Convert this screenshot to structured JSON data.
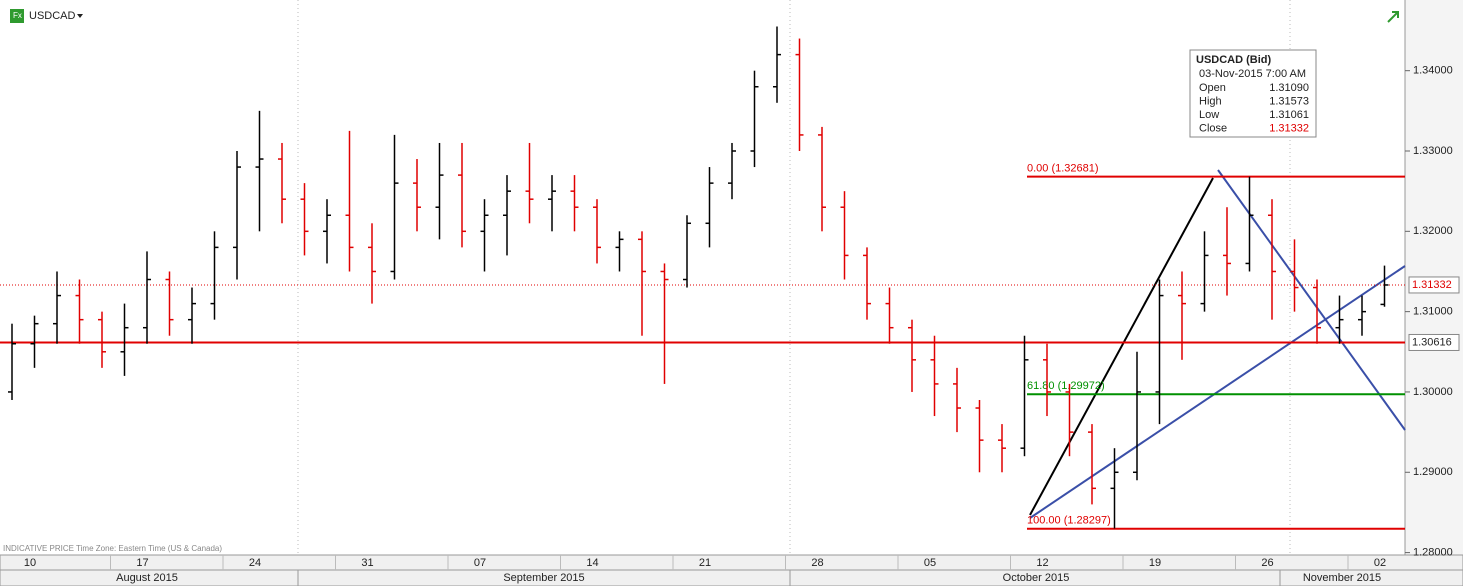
{
  "header": {
    "symbol": "USDCAD",
    "footnote": "INDICATIVE PRICE   Time Zone: Eastern Time (US & Canada)"
  },
  "info_box": {
    "title": "USDCAD (Bid)",
    "date": "03-Nov-2015 7:00 AM",
    "rows": [
      [
        "Open",
        "1.31090"
      ],
      [
        "High",
        "1.31573"
      ],
      [
        "Low",
        "1.31061"
      ],
      [
        "Close",
        "1.31332"
      ]
    ]
  },
  "chart_data": {
    "type": "ohlc",
    "up_color": "#000000",
    "down_color": "#e00000",
    "categories": [
      "10",
      null,
      null,
      null,
      null,
      "17",
      null,
      null,
      null,
      null,
      "24",
      null,
      null,
      null,
      null,
      "31",
      null,
      null,
      null,
      null,
      "07",
      null,
      null,
      null,
      null,
      "14",
      null,
      null,
      null,
      null,
      "21",
      null,
      null,
      null,
      null,
      "28",
      null,
      null,
      null,
      null,
      "05",
      null,
      null,
      null,
      null,
      "12",
      null,
      null,
      null,
      null,
      "19",
      null,
      null,
      null,
      null,
      "26",
      null,
      null,
      null,
      null,
      "02",
      null
    ],
    "month_labels": [
      "August 2015",
      "September 2015",
      "October 2015",
      "November 2015"
    ],
    "open": [
      1.3,
      1.306,
      1.3085,
      1.312,
      1.309,
      1.305,
      1.308,
      1.314,
      1.309,
      1.311,
      1.318,
      1.328,
      1.329,
      1.324,
      1.32,
      1.322,
      1.318,
      1.315,
      1.326,
      1.323,
      1.327,
      1.32,
      1.322,
      1.325,
      1.324,
      1.325,
      1.323,
      1.318,
      1.319,
      1.315,
      1.314,
      1.321,
      1.326,
      1.33,
      1.338,
      1.342,
      1.332,
      1.323,
      1.317,
      1.311,
      1.308,
      1.304,
      1.301,
      1.298,
      1.294,
      1.293,
      1.304,
      1.3,
      1.295,
      1.288,
      1.29,
      1.3,
      1.312,
      1.311,
      1.317,
      1.316,
      1.322,
      1.315,
      1.313,
      1.308,
      1.309,
      1.3109
    ],
    "high": [
      1.3085,
      1.3095,
      1.315,
      1.314,
      1.31,
      1.311,
      1.3175,
      1.315,
      1.313,
      1.32,
      1.33,
      1.335,
      1.331,
      1.326,
      1.324,
      1.3325,
      1.321,
      1.332,
      1.329,
      1.331,
      1.331,
      1.324,
      1.327,
      1.331,
      1.327,
      1.327,
      1.324,
      1.32,
      1.32,
      1.316,
      1.322,
      1.328,
      1.331,
      1.34,
      1.3455,
      1.344,
      1.333,
      1.325,
      1.318,
      1.313,
      1.309,
      1.307,
      1.303,
      1.299,
      1.296,
      1.307,
      1.306,
      1.301,
      1.296,
      1.293,
      1.305,
      1.314,
      1.315,
      1.32,
      1.323,
      1.3268,
      1.324,
      1.319,
      1.314,
      1.312,
      1.312,
      1.31573
    ],
    "low": [
      1.299,
      1.303,
      1.306,
      1.306,
      1.303,
      1.302,
      1.306,
      1.307,
      1.306,
      1.309,
      1.314,
      1.32,
      1.321,
      1.317,
      1.316,
      1.315,
      1.311,
      1.314,
      1.32,
      1.319,
      1.318,
      1.315,
      1.317,
      1.321,
      1.32,
      1.32,
      1.316,
      1.315,
      1.307,
      1.301,
      1.313,
      1.318,
      1.324,
      1.328,
      1.336,
      1.33,
      1.32,
      1.314,
      1.309,
      1.306,
      1.3,
      1.297,
      1.295,
      1.29,
      1.29,
      1.292,
      1.297,
      1.292,
      1.286,
      1.283,
      1.289,
      1.296,
      1.304,
      1.31,
      1.312,
      1.315,
      1.309,
      1.31,
      1.306,
      1.306,
      1.307,
      1.31061
    ],
    "close": [
      1.306,
      1.3085,
      1.312,
      1.309,
      1.305,
      1.308,
      1.314,
      1.309,
      1.311,
      1.318,
      1.328,
      1.329,
      1.324,
      1.32,
      1.322,
      1.318,
      1.315,
      1.326,
      1.323,
      1.327,
      1.32,
      1.322,
      1.325,
      1.324,
      1.325,
      1.323,
      1.318,
      1.319,
      1.315,
      1.314,
      1.321,
      1.326,
      1.33,
      1.338,
      1.342,
      1.332,
      1.323,
      1.317,
      1.311,
      1.308,
      1.304,
      1.301,
      1.298,
      1.294,
      1.293,
      1.304,
      1.3,
      1.295,
      1.288,
      1.29,
      1.3,
      1.312,
      1.311,
      1.317,
      1.316,
      1.322,
      1.315,
      1.313,
      1.308,
      1.309,
      1.31,
      1.31332
    ],
    "ylim": [
      1.2797,
      1.3488
    ],
    "yticks": [
      {
        "value": 1.28,
        "label": "1.28000"
      },
      {
        "value": 1.29,
        "label": "1.29000"
      },
      {
        "value": 1.3,
        "label": "1.30000"
      },
      {
        "value": 1.31,
        "label": "1.31000"
      },
      {
        "value": 1.32,
        "label": "1.32000"
      },
      {
        "value": 1.33,
        "label": "1.33000"
      },
      {
        "value": 1.34,
        "label": "1.34000"
      }
    ],
    "fib_levels": [
      {
        "label": "0.00 (1.32681)",
        "value": 1.32681,
        "color": "#e00000"
      },
      {
        "label": "61.80 (1.29972)",
        "value": 1.29972,
        "color": "#009000"
      },
      {
        "label": "100.00 (1.28297)",
        "value": 1.28297,
        "color": "#e00000"
      }
    ],
    "support": {
      "value": 1.30616,
      "label": "1.30616",
      "color": "#e00000"
    },
    "last_price": {
      "value": 1.31332,
      "label": "1.31332",
      "color": "#e00000"
    }
  }
}
